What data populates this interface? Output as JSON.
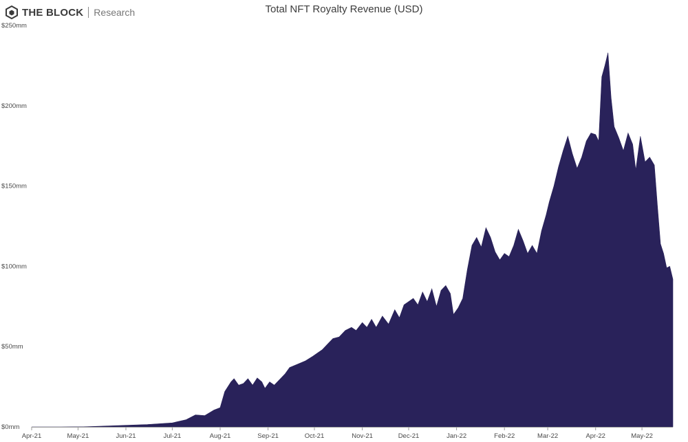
{
  "brand": {
    "name": "THE BLOCK",
    "sub": "Research"
  },
  "chart_data": {
    "type": "area",
    "title": "Total NFT Royalty Revenue (USD)",
    "xlabel": "",
    "ylabel": "",
    "color": "#29225a",
    "grid": false,
    "legend": "none",
    "ylim": [
      0,
      250000000
    ],
    "y_ticks": [
      {
        "label": "$0mm",
        "value": 0
      },
      {
        "label": "$50mm",
        "value": 50000000
      },
      {
        "label": "$100mm",
        "value": 100000000
      },
      {
        "label": "$150mm",
        "value": 150000000
      },
      {
        "label": "$200mm",
        "value": 200000000
      },
      {
        "label": "$250mm",
        "value": 250000000
      }
    ],
    "x_ticks": [
      {
        "label": "Apr-21",
        "date": "2021-04-01"
      },
      {
        "label": "May-21",
        "date": "2021-05-01"
      },
      {
        "label": "Jun-21",
        "date": "2021-06-01"
      },
      {
        "label": "Jul-21",
        "date": "2021-07-01"
      },
      {
        "label": "Aug-21",
        "date": "2021-08-01"
      },
      {
        "label": "Sep-21",
        "date": "2021-09-01"
      },
      {
        "label": "Oct-21",
        "date": "2021-10-01"
      },
      {
        "label": "Nov-21",
        "date": "2021-11-01"
      },
      {
        "label": "Dec-21",
        "date": "2021-12-01"
      },
      {
        "label": "Jan-22",
        "date": "2022-01-01"
      },
      {
        "label": "Feb-22",
        "date": "2022-02-01"
      },
      {
        "label": "Mar-22",
        "date": "2022-03-01"
      },
      {
        "label": "Apr-22",
        "date": "2022-04-01"
      },
      {
        "label": "May-22",
        "date": "2022-05-01"
      }
    ],
    "xlim": [
      "2021-04-01",
      "2022-05-21"
    ],
    "series": [
      {
        "name": "",
        "points": [
          [
            "2021-04-01",
            0
          ],
          [
            "2021-04-20",
            0
          ],
          [
            "2021-05-05",
            100000
          ],
          [
            "2021-05-15",
            400000
          ],
          [
            "2021-06-01",
            1000000
          ],
          [
            "2021-06-15",
            1500000
          ],
          [
            "2021-07-01",
            2500000
          ],
          [
            "2021-07-10",
            4500000
          ],
          [
            "2021-07-16",
            7500000
          ],
          [
            "2021-07-22",
            7000000
          ],
          [
            "2021-07-28",
            10500000
          ],
          [
            "2021-08-01",
            12000000
          ],
          [
            "2021-08-04",
            22000000
          ],
          [
            "2021-08-08",
            28000000
          ],
          [
            "2021-08-10",
            30000000
          ],
          [
            "2021-08-13",
            26000000
          ],
          [
            "2021-08-16",
            27000000
          ],
          [
            "2021-08-19",
            30000000
          ],
          [
            "2021-08-22",
            26000000
          ],
          [
            "2021-08-25",
            30500000
          ],
          [
            "2021-08-28",
            28000000
          ],
          [
            "2021-08-30",
            24000000
          ],
          [
            "2021-09-02",
            28000000
          ],
          [
            "2021-09-05",
            26000000
          ],
          [
            "2021-09-08",
            29000000
          ],
          [
            "2021-09-12",
            33000000
          ],
          [
            "2021-09-15",
            37000000
          ],
          [
            "2021-09-20",
            39000000
          ],
          [
            "2021-09-25",
            41000000
          ],
          [
            "2021-09-30",
            44000000
          ],
          [
            "2021-10-03",
            46000000
          ],
          [
            "2021-10-06",
            48000000
          ],
          [
            "2021-10-10",
            52000000
          ],
          [
            "2021-10-13",
            55000000
          ],
          [
            "2021-10-17",
            56000000
          ],
          [
            "2021-10-21",
            60000000
          ],
          [
            "2021-10-25",
            62000000
          ],
          [
            "2021-10-28",
            60000000
          ],
          [
            "2021-11-01",
            65000000
          ],
          [
            "2021-11-04",
            62000000
          ],
          [
            "2021-11-07",
            67000000
          ],
          [
            "2021-11-10",
            62000000
          ],
          [
            "2021-11-14",
            69000000
          ],
          [
            "2021-11-18",
            64000000
          ],
          [
            "2021-11-22",
            73000000
          ],
          [
            "2021-11-25",
            68000000
          ],
          [
            "2021-11-28",
            76000000
          ],
          [
            "2021-12-01",
            78000000
          ],
          [
            "2021-12-04",
            80000000
          ],
          [
            "2021-12-07",
            76000000
          ],
          [
            "2021-12-10",
            84000000
          ],
          [
            "2021-12-13",
            78000000
          ],
          [
            "2021-12-16",
            86000000
          ],
          [
            "2021-12-19",
            75000000
          ],
          [
            "2021-12-22",
            85000000
          ],
          [
            "2021-12-25",
            88000000
          ],
          [
            "2021-12-28",
            83000000
          ],
          [
            "2021-12-30",
            70000000
          ],
          [
            "2022-01-02",
            74000000
          ],
          [
            "2022-01-05",
            80000000
          ],
          [
            "2022-01-08",
            98000000
          ],
          [
            "2022-01-11",
            113000000
          ],
          [
            "2022-01-14",
            118000000
          ],
          [
            "2022-01-17",
            112000000
          ],
          [
            "2022-01-20",
            124000000
          ],
          [
            "2022-01-23",
            118000000
          ],
          [
            "2022-01-26",
            109000000
          ],
          [
            "2022-01-29",
            104000000
          ],
          [
            "2022-02-01",
            108000000
          ],
          [
            "2022-02-04",
            106000000
          ],
          [
            "2022-02-07",
            113000000
          ],
          [
            "2022-02-10",
            123000000
          ],
          [
            "2022-02-13",
            116000000
          ],
          [
            "2022-02-16",
            108000000
          ],
          [
            "2022-02-19",
            113000000
          ],
          [
            "2022-02-22",
            108000000
          ],
          [
            "2022-02-25",
            122000000
          ],
          [
            "2022-02-28",
            132000000
          ],
          [
            "2022-03-02",
            140000000
          ],
          [
            "2022-03-05",
            150000000
          ],
          [
            "2022-03-08",
            162000000
          ],
          [
            "2022-03-11",
            172000000
          ],
          [
            "2022-03-14",
            181000000
          ],
          [
            "2022-03-17",
            170000000
          ],
          [
            "2022-03-20",
            161000000
          ],
          [
            "2022-03-23",
            168000000
          ],
          [
            "2022-03-26",
            178000000
          ],
          [
            "2022-03-29",
            183000000
          ],
          [
            "2022-04-01",
            182000000
          ],
          [
            "2022-04-03",
            178000000
          ],
          [
            "2022-04-05",
            218000000
          ],
          [
            "2022-04-07",
            225000000
          ],
          [
            "2022-04-09",
            233000000
          ],
          [
            "2022-04-11",
            205000000
          ],
          [
            "2022-04-13",
            187000000
          ],
          [
            "2022-04-16",
            180000000
          ],
          [
            "2022-04-19",
            172000000
          ],
          [
            "2022-04-22",
            183000000
          ],
          [
            "2022-04-25",
            176000000
          ],
          [
            "2022-04-27",
            160000000
          ],
          [
            "2022-04-30",
            181000000
          ],
          [
            "2022-05-03",
            165000000
          ],
          [
            "2022-05-06",
            168000000
          ],
          [
            "2022-05-09",
            163000000
          ],
          [
            "2022-05-11",
            138000000
          ],
          [
            "2022-05-13",
            114000000
          ],
          [
            "2022-05-15",
            108000000
          ],
          [
            "2022-05-17",
            99000000
          ],
          [
            "2022-05-19",
            100000000
          ],
          [
            "2022-05-21",
            92000000
          ]
        ]
      }
    ]
  }
}
